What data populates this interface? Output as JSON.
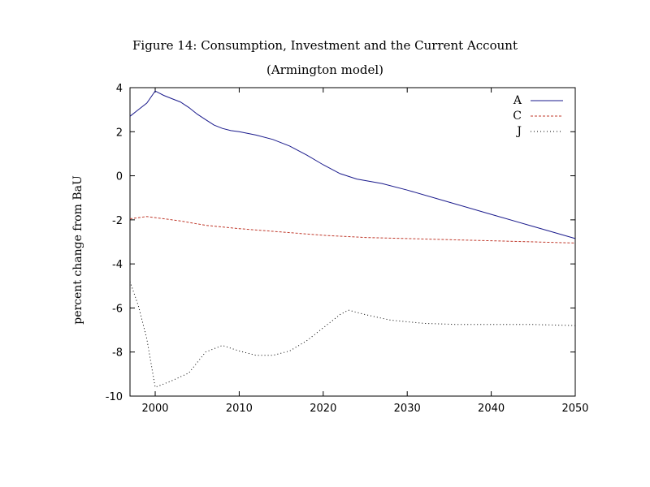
{
  "chart_data": {
    "type": "line",
    "title": "Figure 14: Consumption, Investment and the Current Account",
    "subtitle": "(Armington model)",
    "xlabel": "",
    "ylabel": "percent change from BaU",
    "xlim": [
      1997,
      2050
    ],
    "ylim": [
      -10,
      4
    ],
    "x_ticks": [
      2000,
      2010,
      2020,
      2030,
      2040,
      2050
    ],
    "y_ticks": [
      4,
      2,
      0,
      -2,
      -4,
      -6,
      -8,
      -10
    ],
    "legend_position": "top-right",
    "series": [
      {
        "name": "A",
        "color": "#1a1a8c",
        "style": "solid",
        "x": [
          1997,
          1998,
          1999,
          2000,
          2001,
          2002,
          2003,
          2004,
          2005,
          2006,
          2007,
          2008,
          2009,
          2010,
          2012,
          2014,
          2016,
          2018,
          2020,
          2022,
          2024,
          2027,
          2030,
          2035,
          2040,
          2045,
          2050
        ],
        "values": [
          2.7,
          3.0,
          3.3,
          3.85,
          3.65,
          3.5,
          3.35,
          3.1,
          2.8,
          2.55,
          2.3,
          2.15,
          2.05,
          2.0,
          1.85,
          1.65,
          1.35,
          0.95,
          0.5,
          0.1,
          -0.15,
          -0.35,
          -0.65,
          -1.2,
          -1.75,
          -2.3,
          -2.85
        ]
      },
      {
        "name": "C",
        "color": "#c0392b",
        "style": "dashed",
        "x": [
          1997,
          1999,
          2000,
          2003,
          2006,
          2010,
          2015,
          2020,
          2025,
          2030,
          2035,
          2040,
          2045,
          2050
        ],
        "values": [
          -1.95,
          -1.85,
          -1.9,
          -2.05,
          -2.25,
          -2.4,
          -2.55,
          -2.7,
          -2.8,
          -2.85,
          -2.9,
          -2.95,
          -3.0,
          -3.05
        ]
      },
      {
        "name": "J",
        "color": "#000000",
        "style": "dotted",
        "x": [
          1997,
          1998,
          1999,
          2000,
          2001,
          2002,
          2004,
          2006,
          2008,
          2010,
          2012,
          2014,
          2016,
          2018,
          2020,
          2022,
          2023,
          2025,
          2028,
          2032,
          2036,
          2040,
          2045,
          2050
        ],
        "values": [
          -4.8,
          -5.9,
          -7.4,
          -9.6,
          -9.45,
          -9.3,
          -8.95,
          -8.0,
          -7.7,
          -7.95,
          -8.15,
          -8.15,
          -7.95,
          -7.5,
          -6.9,
          -6.3,
          -6.1,
          -6.3,
          -6.55,
          -6.7,
          -6.75,
          -6.75,
          -6.75,
          -6.8
        ]
      }
    ]
  }
}
